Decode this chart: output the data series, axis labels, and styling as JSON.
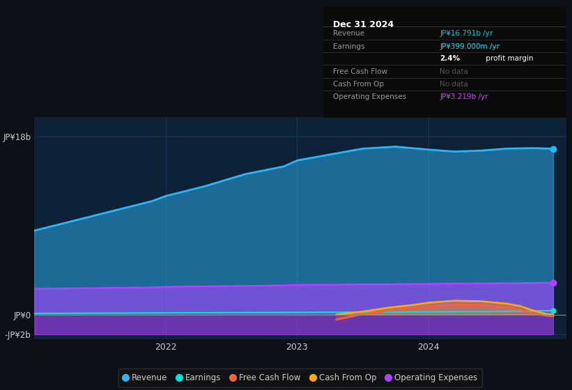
{
  "bg_color": "#0d1117",
  "plot_bg_color": "#0d2137",
  "grid_color": "#1a3a55",
  "title_box": {
    "date": "Dec 31 2024",
    "rows": [
      {
        "label": "Revenue",
        "value": "JP¥16.791b /yr",
        "value_color": "#00ccdd",
        "label_color": "#999999"
      },
      {
        "label": "Earnings",
        "value": "JP¥399.000m /yr",
        "value_color": "#00eeff",
        "label_color": "#999999"
      },
      {
        "label": "",
        "value2_bold": "2.4%",
        "value2_rest": " profit margin",
        "value_color": "#ffffff",
        "label_color": "#999999"
      },
      {
        "label": "Free Cash Flow",
        "value": "No data",
        "value_color": "#555555",
        "label_color": "#999999"
      },
      {
        "label": "Cash From Op",
        "value": "No data",
        "value_color": "#555555",
        "label_color": "#999999"
      },
      {
        "label": "Operating Expenses",
        "value": "JP¥3.219b /yr",
        "value_color": "#cc44ff",
        "label_color": "#999999"
      }
    ]
  },
  "ylim": [
    -2500000000.0,
    20000000000.0
  ],
  "xlim": [
    2021.0,
    2025.05
  ],
  "yticks": [
    -2000000000.0,
    0,
    18000000000.0
  ],
  "ytick_labels": [
    "-JP¥2b",
    "JP¥0",
    "JP¥18b"
  ],
  "xtick_years": [
    2022,
    2023,
    2024
  ],
  "series": {
    "revenue": {
      "x": [
        2021.0,
        2021.3,
        2021.6,
        2021.9,
        2022.0,
        2022.3,
        2022.6,
        2022.9,
        2023.0,
        2023.25,
        2023.5,
        2023.75,
        2024.0,
        2024.2,
        2024.4,
        2024.6,
        2024.8,
        2024.95
      ],
      "y": [
        8500000000.0,
        9500000000.0,
        10500000000.0,
        11500000000.0,
        12000000000.0,
        13000000000.0,
        14200000000.0,
        15000000000.0,
        15600000000.0,
        16200000000.0,
        16800000000.0,
        17000000000.0,
        16700000000.0,
        16500000000.0,
        16600000000.0,
        16800000000.0,
        16850000000.0,
        16791000000.0
      ],
      "color": "#29b6f6",
      "fill_alpha": 0.5,
      "fill_bottom": 0
    },
    "earnings": {
      "x": [
        2021.0,
        2021.5,
        2022.0,
        2022.5,
        2023.0,
        2023.5,
        2024.0,
        2024.5,
        2024.95
      ],
      "y": [
        120000000.0,
        150000000.0,
        180000000.0,
        200000000.0,
        220000000.0,
        250000000.0,
        280000000.0,
        310000000.0,
        399000000.0
      ],
      "color": "#00e5d4",
      "linewidth": 1.5
    },
    "free_cash_flow": {
      "x": [
        2023.3,
        2023.5,
        2023.7,
        2023.9,
        2024.0,
        2024.2,
        2024.4,
        2024.6,
        2024.7,
        2024.8,
        2024.9,
        2024.95
      ],
      "y": [
        -500000000.0,
        50000000.0,
        400000000.0,
        700000000.0,
        850000000.0,
        1000000000.0,
        1000000000.0,
        750000000.0,
        500000000.0,
        100000000.0,
        -100000000.0,
        -150000000.0
      ],
      "color": "#ff6030",
      "linewidth": 2,
      "fill_alpha": 0.3,
      "fill_bottom": 0
    },
    "cash_from_op": {
      "x": [
        2023.3,
        2023.5,
        2023.7,
        2023.9,
        2024.0,
        2024.2,
        2024.4,
        2024.6,
        2024.7,
        2024.8,
        2024.9,
        2024.95
      ],
      "y": [
        0.0,
        300000000.0,
        700000000.0,
        1000000000.0,
        1200000000.0,
        1400000000.0,
        1350000000.0,
        1100000000.0,
        850000000.0,
        400000000.0,
        50000000.0,
        0.0
      ],
      "color": "#ffaa00",
      "linewidth": 2,
      "fill_alpha": 0.3,
      "fill_bottom": 0
    },
    "operating_expenses": {
      "x": [
        2021.0,
        2021.3,
        2021.6,
        2021.9,
        2022.0,
        2022.3,
        2022.6,
        2022.9,
        2023.0,
        2023.25,
        2023.5,
        2023.75,
        2024.0,
        2024.2,
        2024.4,
        2024.6,
        2024.8,
        2024.95
      ],
      "y": [
        2600000000.0,
        2650000000.0,
        2700000000.0,
        2750000000.0,
        2800000000.0,
        2850000000.0,
        2900000000.0,
        2950000000.0,
        3000000000.0,
        3020000000.0,
        3050000000.0,
        3070000000.0,
        3100000000.0,
        3130000000.0,
        3150000000.0,
        3170000000.0,
        3200000000.0,
        3219000000.0
      ],
      "neg_y": [
        -2000000000.0,
        -2000000000.0,
        -2000000000.0,
        -2000000000.0,
        -2000000000.0,
        -2000000000.0,
        -2000000000.0,
        -2000000000.0,
        -2000000000.0,
        -2000000000.0,
        -2000000000.0,
        -2000000000.0,
        -2000000000.0,
        -2000000000.0,
        -2000000000.0,
        -2000000000.0,
        -2000000000.0,
        -2000000000.0
      ],
      "color": "#aa44ff",
      "fill_alpha": 0.6,
      "fill_bottom": -2000000000.0
    }
  },
  "legend": [
    {
      "label": "Revenue",
      "color": "#29b6f6"
    },
    {
      "label": "Earnings",
      "color": "#00e5d4"
    },
    {
      "label": "Free Cash Flow",
      "color": "#ff6030"
    },
    {
      "label": "Cash From Op",
      "color": "#ffaa00"
    },
    {
      "label": "Operating Expenses",
      "color": "#aa44ff"
    }
  ]
}
